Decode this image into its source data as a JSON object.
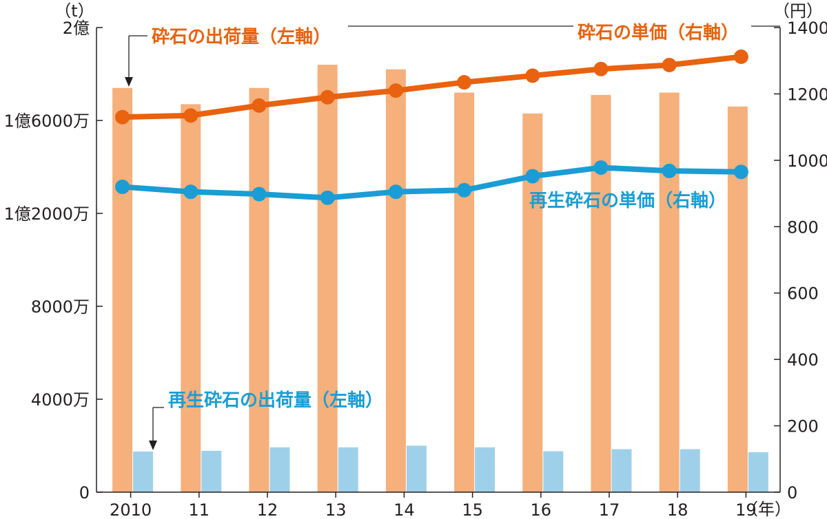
{
  "chart_data": {
    "type": "bar+line",
    "title": "",
    "categories": [
      "2010",
      "11",
      "12",
      "13",
      "14",
      "15",
      "16",
      "17",
      "18",
      "19"
    ],
    "x_unit": "（年）",
    "left_axis": {
      "unit": "（t）",
      "ylim": [
        0,
        200000000
      ],
      "ticks": [
        0,
        40000000,
        80000000,
        120000000,
        160000000,
        200000000
      ],
      "tick_labels": [
        "0",
        "4000万",
        "8000万",
        "1億2000万",
        "1億6000万",
        "2億"
      ]
    },
    "right_axis": {
      "unit": "（円）",
      "ylim": [
        0,
        1400
      ],
      "ticks": [
        0,
        200,
        400,
        600,
        800,
        1000,
        1200,
        1400
      ],
      "tick_labels": [
        "0",
        "200",
        "400",
        "600",
        "800",
        "1000",
        "1200",
        "1400"
      ]
    },
    "series": [
      {
        "name": "砕石の出荷量（左軸）",
        "kind": "bar",
        "axis": "left",
        "color": "#f5b07c",
        "values": [
          174000000,
          167000000,
          174000000,
          184000000,
          182000000,
          172000000,
          163000000,
          171000000,
          172000000,
          166000000
        ]
      },
      {
        "name": "再生砕石の出荷量（左軸）",
        "kind": "bar",
        "axis": "left",
        "color": "#9fd0ea",
        "values": [
          17500000,
          17800000,
          19300000,
          19300000,
          20000000,
          19300000,
          17600000,
          18500000,
          18500000,
          17200000
        ]
      },
      {
        "name": "砕石の単価（右軸）",
        "kind": "line",
        "axis": "right",
        "color": "#e8620f",
        "values": [
          1130,
          1135,
          1165,
          1190,
          1210,
          1235,
          1255,
          1275,
          1287,
          1312
        ]
      },
      {
        "name": "再生砕石の単価（右軸）",
        "kind": "line",
        "axis": "right",
        "color": "#1a9dd4",
        "values": [
          920,
          905,
          898,
          887,
          905,
          910,
          952,
          978,
          968,
          965
        ]
      }
    ]
  }
}
